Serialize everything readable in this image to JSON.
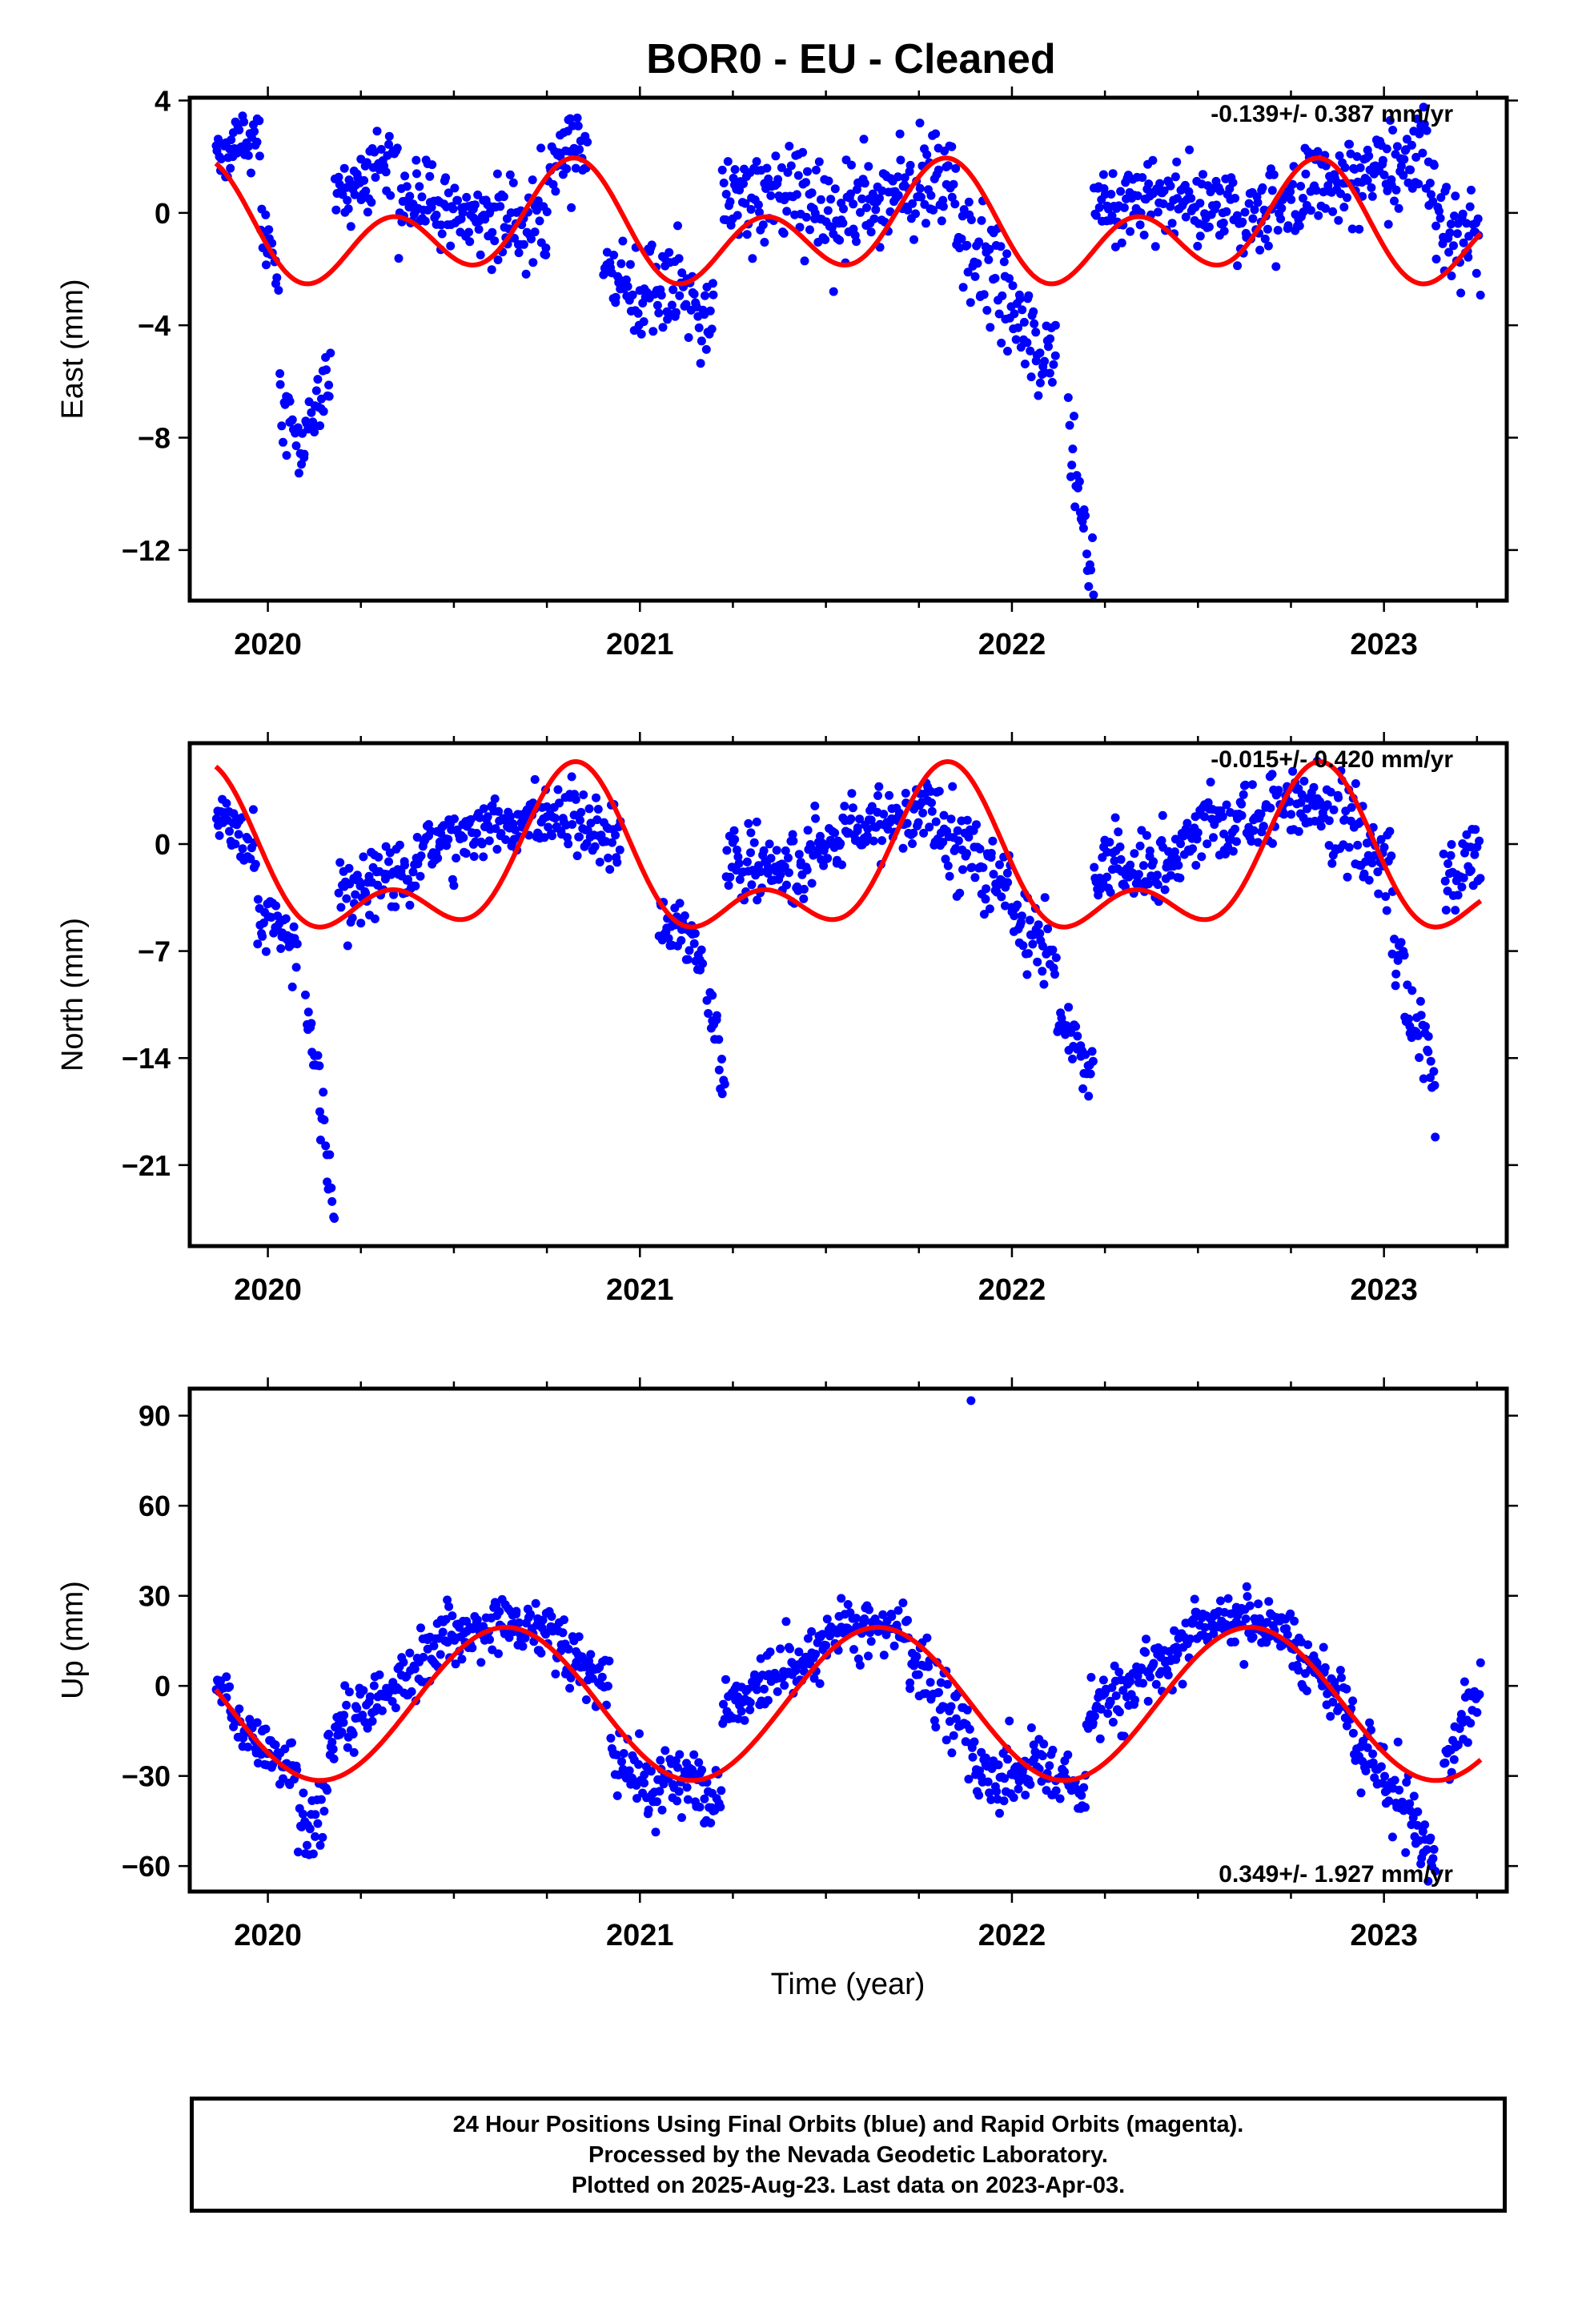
{
  "figure": {
    "title": "BOR0  - EU - Cleaned",
    "xlabel": "Time (year)",
    "footer": [
      "24 Hour Positions Using Final Orbits (blue) and Rapid Orbits (magenta).",
      "Processed by the Nevada Geodetic Laboratory.",
      "Plotted on 2025-Aug-23. Last data on 2023-Apr-03."
    ]
  },
  "colors": {
    "points": "#0000ff",
    "model": "#ff0000",
    "axes": "#000000"
  },
  "chart_data": [
    {
      "type": "scatter",
      "name": "east",
      "ylabel": "East (mm)",
      "rate_label": "-0.139+/- 0.387 mm/yr",
      "rate_label_position": "top-right",
      "xlim": [
        2019.79,
        2023.33
      ],
      "ylim": [
        -13.8,
        4.1
      ],
      "xticks": [
        2020,
        2021,
        2022,
        2023
      ],
      "yticks": [
        4,
        0,
        -4,
        -8,
        -12
      ],
      "model": {
        "offset": -0.6,
        "annual_amp": 1.1,
        "annual_peak": 0.78,
        "semi_amp": 1.5,
        "semi_peak": 0.33
      },
      "segments": [
        {
          "t": [
            2019.86,
            2019.98
          ],
          "v": [
            2.2,
            2.9
          ],
          "sd": 0.6
        },
        {
          "t": [
            2019.98,
            2020.03
          ],
          "v": [
            -0.5,
            -2.6
          ],
          "sd": 0.6
        },
        {
          "t": [
            2020.03,
            2020.1
          ],
          "v": [
            -6.2,
            -9.5
          ],
          "sd": 0.8
        },
        {
          "t": [
            2020.1,
            2020.17
          ],
          "v": [
            -8.0,
            -5.5
          ],
          "sd": 0.7
        },
        {
          "t": [
            2020.18,
            2020.35
          ],
          "v": [
            0.5,
            2.2
          ],
          "sd": 0.6
        },
        {
          "t": [
            2020.35,
            2020.75
          ],
          "v": [
            0.5,
            -0.5
          ],
          "sd": 0.7
        },
        {
          "t": [
            2020.75,
            2020.86
          ],
          "v": [
            1.5,
            2.5
          ],
          "sd": 0.7
        },
        {
          "t": [
            2020.9,
            2021.02
          ],
          "v": [
            -1.5,
            -3.5
          ],
          "sd": 0.7
        },
        {
          "t": [
            2021.02,
            2021.2
          ],
          "v": [
            -1.8,
            -3.8
          ],
          "sd": 0.9
        },
        {
          "t": [
            2021.22,
            2021.6
          ],
          "v": [
            0.8,
            0.2
          ],
          "sd": 0.8
        },
        {
          "t": [
            2021.6,
            2021.85
          ],
          "v": [
            0.5,
            1.2
          ],
          "sd": 0.8
        },
        {
          "t": [
            2021.85,
            2022.0
          ],
          "v": [
            -1.0,
            -2.8
          ],
          "sd": 1.0
        },
        {
          "t": [
            2022.0,
            2022.12
          ],
          "v": [
            -3.6,
            -5.4
          ],
          "sd": 0.8
        },
        {
          "t": [
            2022.15,
            2022.22
          ],
          "v": [
            -7.6,
            -13.3
          ],
          "sd": 0.8
        },
        {
          "t": [
            2022.22,
            2022.6
          ],
          "v": [
            0.6,
            0.3
          ],
          "sd": 0.7
        },
        {
          "t": [
            2022.6,
            2022.95
          ],
          "v": [
            -0.6,
            1.6
          ],
          "sd": 0.8
        },
        {
          "t": [
            2022.95,
            2023.12
          ],
          "v": [
            1.5,
            2.0
          ],
          "sd": 0.9
        },
        {
          "t": [
            2023.12,
            2023.26
          ],
          "v": [
            0.5,
            -1.5
          ],
          "sd": 1.0
        }
      ]
    },
    {
      "type": "scatter",
      "name": "north",
      "ylabel": "North (mm)",
      "rate_label": "-0.015+/- 0.420 mm/yr",
      "rate_label_position": "top-right",
      "xlim": [
        2019.79,
        2023.33
      ],
      "ylim": [
        -26.3,
        6.6
      ],
      "xticks": [
        2020,
        2021,
        2022,
        2023
      ],
      "yticks": [
        0,
        -7,
        -14,
        -21
      ],
      "model": {
        "offset": -1.6,
        "annual_amp": 4.2,
        "annual_peak": 0.82,
        "semi_amp": 2.8,
        "semi_peak": 0.33
      },
      "segments": [
        {
          "t": [
            2019.86,
            2019.97
          ],
          "v": [
            2.5,
            -1.0
          ],
          "sd": 1.1
        },
        {
          "t": [
            2019.97,
            2020.08
          ],
          "v": [
            -4.0,
            -7.0
          ],
          "sd": 1.0
        },
        {
          "t": [
            2020.1,
            2020.18
          ],
          "v": [
            -10.0,
            -24.5
          ],
          "sd": 1.2
        },
        {
          "t": [
            2020.19,
            2020.4
          ],
          "v": [
            -3.5,
            -1.5
          ],
          "sd": 1.3
        },
        {
          "t": [
            2020.4,
            2020.8
          ],
          "v": [
            0.0,
            2.0
          ],
          "sd": 1.1
        },
        {
          "t": [
            2020.8,
            2020.95
          ],
          "v": [
            1.5,
            0.0
          ],
          "sd": 1.2
        },
        {
          "t": [
            2021.05,
            2021.17
          ],
          "v": [
            -4.5,
            -6.5
          ],
          "sd": 1.0
        },
        {
          "t": [
            2021.18,
            2021.23
          ],
          "v": [
            -10.0,
            -15.5
          ],
          "sd": 1.2
        },
        {
          "t": [
            2021.23,
            2021.45
          ],
          "v": [
            -1.5,
            -2.0
          ],
          "sd": 1.2
        },
        {
          "t": [
            2021.45,
            2021.8
          ],
          "v": [
            0.0,
            2.5
          ],
          "sd": 1.1
        },
        {
          "t": [
            2021.8,
            2022.0
          ],
          "v": [
            1.0,
            -3.0
          ],
          "sd": 1.3
        },
        {
          "t": [
            2022.0,
            2022.12
          ],
          "v": [
            -4.5,
            -8.0
          ],
          "sd": 1.1
        },
        {
          "t": [
            2022.12,
            2022.22
          ],
          "v": [
            -11.0,
            -15.5
          ],
          "sd": 1.0
        },
        {
          "t": [
            2022.22,
            2022.45
          ],
          "v": [
            -2.0,
            -1.0
          ],
          "sd": 1.2
        },
        {
          "t": [
            2022.45,
            2022.85
          ],
          "v": [
            0.5,
            3.5
          ],
          "sd": 1.2
        },
        {
          "t": [
            2022.85,
            2023.02
          ],
          "v": [
            2.0,
            -2.0
          ],
          "sd": 1.4
        },
        {
          "t": [
            2023.02,
            2023.14
          ],
          "v": [
            -6.0,
            -16.0
          ],
          "sd": 1.5
        },
        {
          "t": [
            2023.16,
            2023.26
          ],
          "v": [
            -2.5,
            -1.0
          ],
          "sd": 1.5
        }
      ]
    },
    {
      "type": "scatter",
      "name": "up",
      "ylabel": "Up (mm)",
      "rate_label": "0.349+/- 1.927 mm/yr",
      "rate_label_position": "bottom-right",
      "xlim": [
        2019.79,
        2023.33
      ],
      "ylim": [
        -68.5,
        99
      ],
      "xticks": [
        2020,
        2021,
        2022,
        2023
      ],
      "yticks": [
        90,
        60,
        30,
        0,
        -30,
        -60
      ],
      "model": {
        "offset": -6.0,
        "annual_amp": 25.5,
        "annual_peak": 0.64,
        "semi_amp": 0.0,
        "semi_peak": 0.0
      },
      "outliers": [
        {
          "t": 2021.89,
          "v": 95
        }
      ],
      "segments": [
        {
          "t": [
            2019.86,
            2019.9
          ],
          "v": [
            2.0,
            -5.0
          ],
          "sd": 3.0
        },
        {
          "t": [
            2019.9,
            2020.08
          ],
          "v": [
            -12.0,
            -30.0
          ],
          "sd": 4.5
        },
        {
          "t": [
            2020.08,
            2020.16
          ],
          "v": [
            -48.0,
            -40.0
          ],
          "sd": 7.0
        },
        {
          "t": [
            2020.16,
            2020.45
          ],
          "v": [
            -18.0,
            10.0
          ],
          "sd": 5.0
        },
        {
          "t": [
            2020.45,
            2020.75
          ],
          "v": [
            18.0,
            20.0
          ],
          "sd": 4.5
        },
        {
          "t": [
            2020.75,
            2020.92
          ],
          "v": [
            18.0,
            0.0
          ],
          "sd": 5.0
        },
        {
          "t": [
            2020.92,
            2021.05
          ],
          "v": [
            -20.0,
            -40.0
          ],
          "sd": 6.0
        },
        {
          "t": [
            2021.05,
            2021.22
          ],
          "v": [
            -30.0,
            -35.0
          ],
          "sd": 6.0
        },
        {
          "t": [
            2021.22,
            2021.5
          ],
          "v": [
            -8.0,
            12.0
          ],
          "sd": 5.0
        },
        {
          "t": [
            2021.5,
            2021.72
          ],
          "v": [
            18.0,
            18.0
          ],
          "sd": 4.5
        },
        {
          "t": [
            2021.72,
            2021.9
          ],
          "v": [
            10.0,
            -20.0
          ],
          "sd": 6.0
        },
        {
          "t": [
            2021.9,
            2022.05
          ],
          "v": [
            -30.0,
            -28.0
          ],
          "sd": 4.5
        },
        {
          "t": [
            2022.05,
            2022.2
          ],
          "v": [
            -20.0,
            -38.0
          ],
          "sd": 5.0
        },
        {
          "t": [
            2022.2,
            2022.48
          ],
          "v": [
            -10.0,
            15.0
          ],
          "sd": 5.0
        },
        {
          "t": [
            2022.48,
            2022.75
          ],
          "v": [
            22.0,
            20.0
          ],
          "sd": 4.5
        },
        {
          "t": [
            2022.75,
            2022.92
          ],
          "v": [
            15.0,
            -10.0
          ],
          "sd": 5.0
        },
        {
          "t": [
            2022.92,
            2023.05
          ],
          "v": [
            -22.0,
            -38.0
          ],
          "sd": 6.0
        },
        {
          "t": [
            2023.05,
            2023.14
          ],
          "v": [
            -40.0,
            -55.0
          ],
          "sd": 7.0
        },
        {
          "t": [
            2023.16,
            2023.26
          ],
          "v": [
            -30.0,
            0.0
          ],
          "sd": 5.0
        }
      ]
    }
  ]
}
